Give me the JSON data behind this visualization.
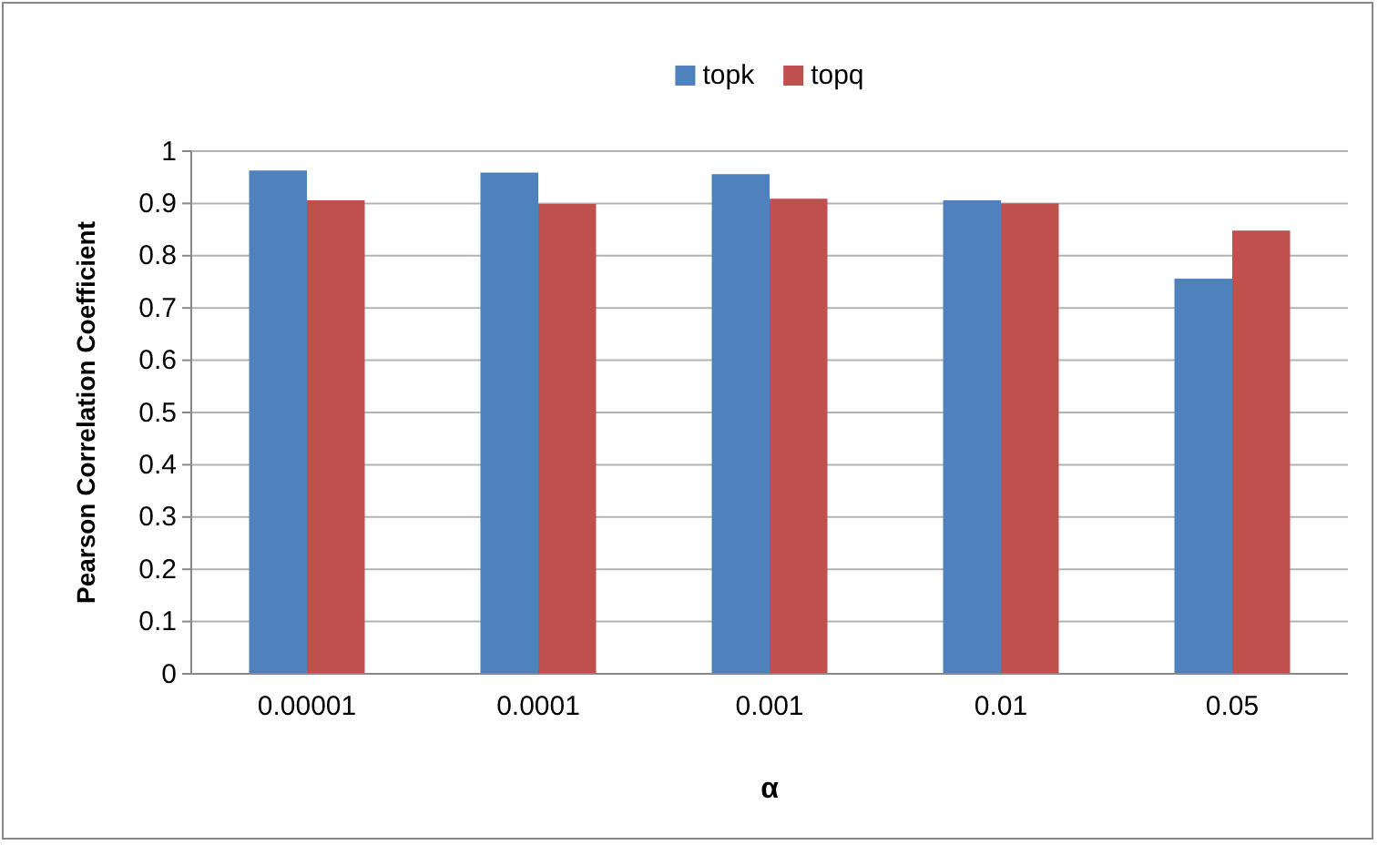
{
  "chart_data": {
    "type": "bar",
    "xlabel": "α",
    "ylabel": "Pearson Correlation Coefficient",
    "categories": [
      "0.00001",
      "0.0001",
      "0.001",
      "0.01",
      "0.05"
    ],
    "series": [
      {
        "name": "topk",
        "color": "#4f81bd",
        "values": [
          0.963,
          0.959,
          0.956,
          0.906,
          0.756
        ]
      },
      {
        "name": "topq",
        "color": "#c0504d",
        "values": [
          0.906,
          0.899,
          0.909,
          0.9,
          0.848
        ]
      }
    ],
    "ylim": [
      0,
      1
    ],
    "yticks": [
      0,
      0.1,
      0.2,
      0.3,
      0.4,
      0.5,
      0.6,
      0.7,
      0.8,
      0.9,
      1
    ],
    "grid": "y",
    "legend": "top"
  }
}
